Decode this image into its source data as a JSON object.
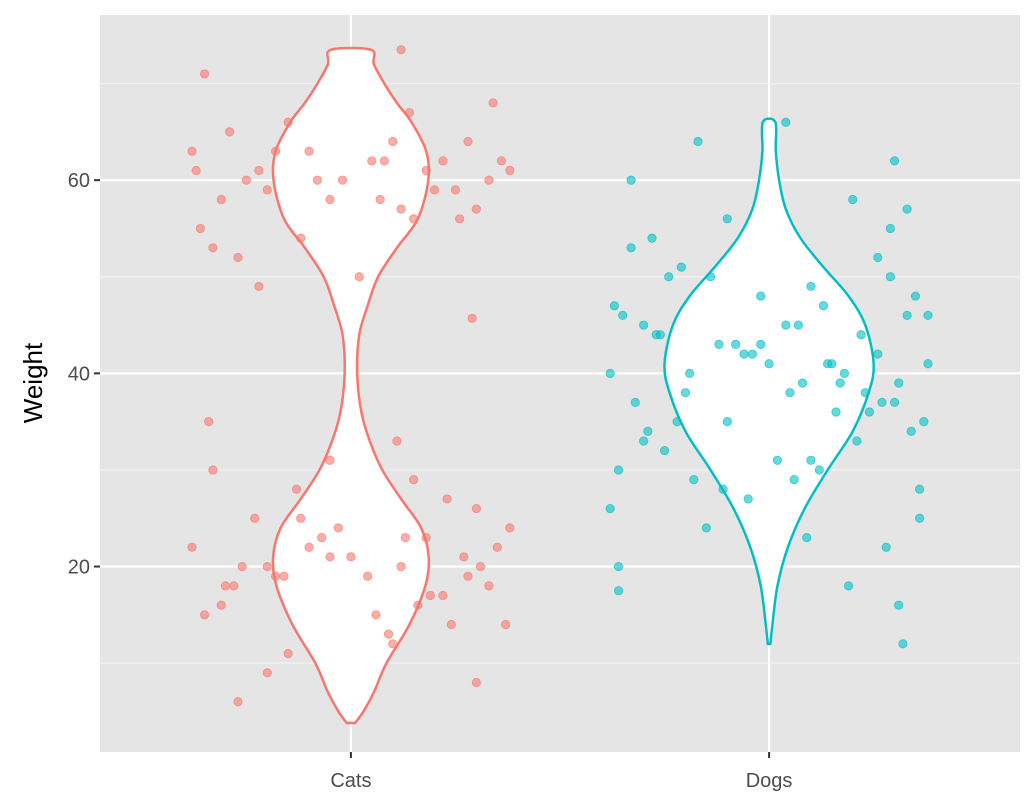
{
  "chart_data": {
    "type": "violin+jitter",
    "title": "",
    "xlabel": "",
    "ylabel": "Weight",
    "categories": [
      "Cats",
      "Dogs"
    ],
    "xlim": [
      0.4,
      2.6
    ],
    "ylim": [
      0.8,
      77.1
    ],
    "y_ticks": [
      20,
      40,
      60
    ],
    "y_minor": [
      10,
      30,
      50,
      70
    ],
    "grid": true,
    "legend": "none",
    "series": [
      {
        "name": "Cats",
        "color": "#F8766D",
        "violin_profile": [
          [
            3.8,
            0.01
          ],
          [
            5,
            0.03
          ],
          [
            7,
            0.055
          ],
          [
            10,
            0.085
          ],
          [
            14,
            0.14
          ],
          [
            18,
            0.178
          ],
          [
            21,
            0.186
          ],
          [
            24,
            0.168
          ],
          [
            27,
            0.12
          ],
          [
            30,
            0.075
          ],
          [
            33,
            0.045
          ],
          [
            36,
            0.025
          ],
          [
            40,
            0.015
          ],
          [
            44,
            0.02
          ],
          [
            47,
            0.04
          ],
          [
            50,
            0.065
          ],
          [
            53,
            0.11
          ],
          [
            56,
            0.16
          ],
          [
            60,
            0.185
          ],
          [
            63,
            0.18
          ],
          [
            66,
            0.145
          ],
          [
            68,
            0.11
          ],
          [
            70,
            0.08
          ],
          [
            72,
            0.055
          ],
          [
            73.5,
            0.048
          ]
        ],
        "points": {
          "y": [
            63,
            58,
            61,
            66,
            55,
            60,
            62,
            57,
            59,
            64,
            68,
            52,
            61,
            56,
            60,
            63,
            59,
            62,
            54,
            65,
            71,
            50,
            60,
            58,
            61,
            57,
            64,
            60,
            62,
            45.7,
            67,
            59,
            53,
            62,
            58,
            63,
            56,
            61,
            73.5,
            49,
            22,
            18,
            20,
            25,
            15,
            21,
            19,
            23,
            17,
            26,
            14,
            20,
            22,
            16,
            24,
            19,
            21,
            13,
            28,
            18,
            30,
            9,
            20,
            23,
            17,
            35,
            6,
            12,
            27,
            21,
            22,
            19,
            24,
            15,
            31,
            18,
            20,
            25,
            16,
            8,
            29,
            23,
            14,
            19,
            33,
            11
          ],
          "jitter": [
            -0.38,
            -0.31,
            -0.22,
            -0.15,
            -0.36,
            -0.08,
            0.05,
            0.12,
            0.2,
            0.28,
            0.34,
            -0.27,
            0.38,
            0.15,
            -0.02,
            -0.18,
            0.25,
            0.08,
            -0.12,
            -0.29,
            -0.35,
            0.02,
            0.33,
            -0.05,
            0.18,
            0.3,
            0.1,
            -0.25,
            0.22,
            0.29,
            0.14,
            -0.2,
            -0.33,
            0.36,
            0.07,
            -0.1,
            0.26,
            -0.37,
            0.12,
            -0.22,
            -0.38,
            -0.3,
            -0.2,
            -0.12,
            -0.35,
            -0.05,
            0.04,
            0.13,
            0.22,
            0.3,
            0.37,
            -0.26,
            0.35,
            0.16,
            -0.03,
            -0.16,
            0.27,
            0.09,
            -0.13,
            -0.28,
            -0.33,
            -0.2,
            0.31,
            -0.07,
            0.19,
            -0.34,
            -0.27,
            0.1,
            0.23,
            0.0,
            -0.1,
            0.28,
            0.38,
            0.06,
            -0.05,
            0.33,
            0.12,
            -0.23,
            -0.31,
            0.3,
            0.15,
            0.18,
            0.24,
            -0.18,
            0.11,
            -0.15
          ]
        }
      },
      {
        "name": "Dogs",
        "color": "#00BFC4",
        "violin_profile": [
          [
            12,
            0.003
          ],
          [
            14,
            0.008
          ],
          [
            18,
            0.02
          ],
          [
            22,
            0.045
          ],
          [
            26,
            0.085
          ],
          [
            30,
            0.14
          ],
          [
            34,
            0.2
          ],
          [
            38,
            0.238
          ],
          [
            41,
            0.25
          ],
          [
            45,
            0.23
          ],
          [
            48,
            0.19
          ],
          [
            51,
            0.13
          ],
          [
            54,
            0.075
          ],
          [
            57,
            0.04
          ],
          [
            60,
            0.024
          ],
          [
            63,
            0.016
          ],
          [
            66,
            0.015
          ]
        ],
        "points": {
          "y": [
            40,
            45,
            35,
            50,
            30,
            42,
            38,
            47,
            33,
            55,
            25,
            44,
            41,
            36,
            48,
            29,
            52,
            39,
            43,
            34,
            46,
            31,
            57,
            27,
            40,
            37,
            49,
            32,
            44,
            60,
            22,
            41,
            38,
            53,
            28,
            45,
            35,
            42,
            47,
            30,
            64,
            18,
            39,
            50,
            36,
            43,
            26,
            48,
            33,
            41,
            58,
            24,
            46,
            37,
            40,
            12,
            62,
            20,
            44,
            31,
            51,
            35,
            39,
            28,
            45,
            16,
            42,
            38,
            54,
            34,
            66,
            17.5,
            23,
            56,
            46,
            37,
            41,
            29,
            50,
            43
          ],
          "jitter": [
            -0.38,
            -0.3,
            -0.22,
            -0.14,
            -0.36,
            -0.06,
            0.05,
            0.13,
            0.21,
            0.29,
            0.36,
            -0.27,
            0.38,
            0.16,
            -0.02,
            -0.18,
            0.26,
            0.08,
            -0.12,
            -0.29,
            -0.35,
            0.02,
            0.33,
            -0.05,
            0.18,
            0.3,
            0.1,
            -0.25,
            0.22,
            -0.33,
            0.28,
            0.14,
            -0.2,
            -0.33,
            0.36,
            0.07,
            -0.1,
            0.26,
            -0.37,
            0.12,
            -0.17,
            0.19,
            0.31,
            -0.24,
            0.24,
            -0.08,
            -0.38,
            0.35,
            -0.3,
            0.0,
            0.2,
            -0.15,
            0.33,
            0.27,
            -0.19,
            0.32,
            0.3,
            -0.36,
            -0.26,
            0.1,
            -0.21,
            0.37,
            0.17,
            -0.11,
            0.04,
            0.31,
            -0.04,
            0.23,
            -0.28,
            0.34,
            0.04,
            -0.36,
            0.09,
            -0.1,
            0.38,
            -0.32,
            0.15,
            0.06,
            0.29,
            -0.02
          ]
        }
      }
    ]
  }
}
